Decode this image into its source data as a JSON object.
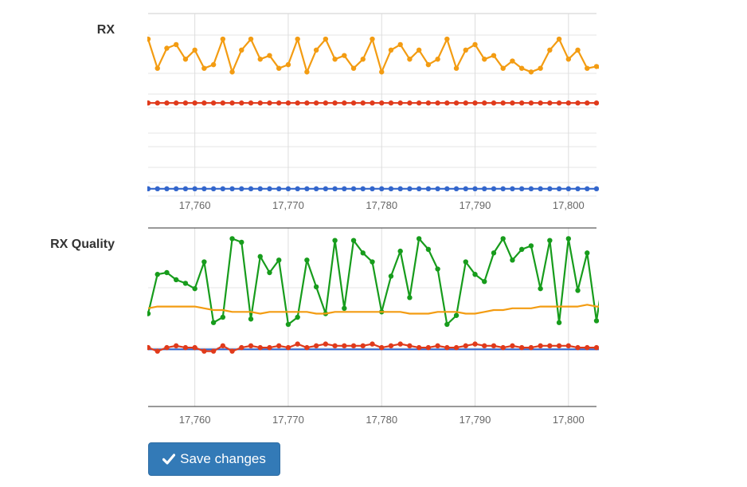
{
  "labels": {
    "rx": "RX",
    "rx_quality": "RX Quality"
  },
  "save_button": {
    "label": "Save changes",
    "icon": "checkmark-icon"
  },
  "colors": {
    "orange": "#f39c12",
    "red": "#e03a1b",
    "blue": "#3366cc",
    "green": "#179c1c",
    "button": "#337ab7"
  },
  "chart_data": [
    {
      "type": "line",
      "title": "RX",
      "xlim": [
        17755,
        17803
      ],
      "ylim": [
        0,
        100
      ],
      "x_ticks": [
        "17,760",
        "17,770",
        "17,780",
        "17,790",
        "17,800"
      ],
      "x_tick_values": [
        17760,
        17770,
        17780,
        17790,
        17800
      ],
      "series": [
        {
          "color": "#f39c12",
          "markers": true,
          "x_start": 17755,
          "x_step": 1,
          "values": [
            86,
            70,
            81,
            83,
            75,
            80,
            70,
            72,
            86,
            68,
            80,
            86,
            75,
            77,
            70,
            72,
            86,
            68,
            80,
            86,
            75,
            77,
            70,
            75,
            86,
            68,
            80,
            83,
            75,
            80,
            72,
            75,
            86,
            70,
            80,
            83,
            75,
            77,
            70,
            74,
            70,
            68,
            70,
            80,
            86,
            75,
            80,
            70,
            71,
            68,
            70
          ]
        },
        {
          "color": "#e03a1b",
          "markers": true,
          "x_start": 17755,
          "x_step": 1,
          "values": [
            51,
            51,
            51,
            51,
            51,
            51,
            51,
            51,
            51,
            51,
            51,
            51,
            51,
            51,
            51,
            51,
            51,
            51,
            51,
            51,
            51,
            51,
            51,
            51,
            51,
            51,
            51,
            51,
            51,
            51,
            51,
            51,
            51,
            51,
            51,
            51,
            51,
            51,
            51,
            51,
            51,
            51,
            51,
            51,
            51,
            51,
            51,
            51,
            51,
            51,
            51
          ]
        },
        {
          "color": "#3366cc",
          "markers": true,
          "x_start": 17755,
          "x_step": 1,
          "values": [
            4,
            4,
            4,
            4,
            4,
            4,
            4,
            4,
            4,
            4,
            4,
            4,
            4,
            4,
            4,
            4,
            4,
            4,
            4,
            4,
            4,
            4,
            4,
            4,
            4,
            4,
            4,
            4,
            4,
            4,
            4,
            4,
            4,
            4,
            4,
            4,
            4,
            4,
            4,
            4,
            4,
            4,
            4,
            4,
            4,
            4,
            4,
            4,
            4,
            4,
            4
          ]
        }
      ]
    },
    {
      "type": "line",
      "title": "RX Quality",
      "xlim": [
        17755,
        17803
      ],
      "ylim": [
        0,
        100
      ],
      "x_ticks": [
        "17,760",
        "17,770",
        "17,780",
        "17,790",
        "17,800"
      ],
      "x_tick_values": [
        17760,
        17770,
        17780,
        17790,
        17800
      ],
      "series": [
        {
          "color": "#179c1c",
          "markers": true,
          "x_start": 17755,
          "x_step": 1,
          "values": [
            52,
            74,
            75,
            71,
            69,
            66,
            81,
            47,
            50,
            94,
            92,
            49,
            84,
            75,
            82,
            46,
            50,
            82,
            67,
            52,
            93,
            55,
            93,
            86,
            81,
            53,
            73,
            87,
            61,
            94,
            88,
            77,
            46,
            51,
            81,
            74,
            70,
            86,
            94,
            82,
            88,
            90,
            66,
            93,
            47,
            94,
            65,
            86,
            48,
            82,
            80
          ]
        },
        {
          "color": "#f39c12",
          "markers": false,
          "x_start": 17755,
          "x_step": 1,
          "values": [
            55,
            56,
            56,
            56,
            56,
            56,
            55,
            54,
            54,
            53,
            53,
            53,
            52,
            53,
            53,
            53,
            53,
            53,
            52,
            52,
            53,
            53,
            53,
            53,
            53,
            53,
            53,
            53,
            52,
            52,
            52,
            53,
            53,
            53,
            52,
            52,
            53,
            54,
            54,
            55,
            55,
            55,
            56,
            56,
            56,
            56,
            56,
            57,
            56,
            56,
            56
          ]
        },
        {
          "color": "#3366cc",
          "markers": false,
          "x_start": 17755,
          "x_step": 1,
          "values": [
            32,
            32,
            32,
            32,
            32,
            32,
            32,
            32,
            32,
            32,
            32,
            32,
            32,
            32,
            32,
            32,
            32,
            32,
            32,
            32,
            32,
            32,
            32,
            32,
            32,
            32,
            32,
            32,
            32,
            32,
            32,
            32,
            32,
            32,
            32,
            32,
            32,
            32,
            32,
            32,
            32,
            32,
            32,
            32,
            32,
            32,
            32,
            32,
            32,
            32,
            32
          ]
        },
        {
          "color": "#e03a1b",
          "markers": true,
          "x_start": 17755,
          "x_step": 1,
          "values": [
            33,
            31,
            33,
            34,
            33,
            33,
            31,
            31,
            34,
            31,
            33,
            34,
            33,
            33,
            34,
            33,
            35,
            33,
            34,
            35,
            34,
            34,
            34,
            34,
            35,
            33,
            34,
            35,
            34,
            33,
            33,
            34,
            33,
            33,
            34,
            35,
            34,
            34,
            33,
            34,
            33,
            33,
            34,
            34,
            34,
            34,
            33,
            33,
            33,
            33,
            33
          ]
        }
      ]
    }
  ]
}
